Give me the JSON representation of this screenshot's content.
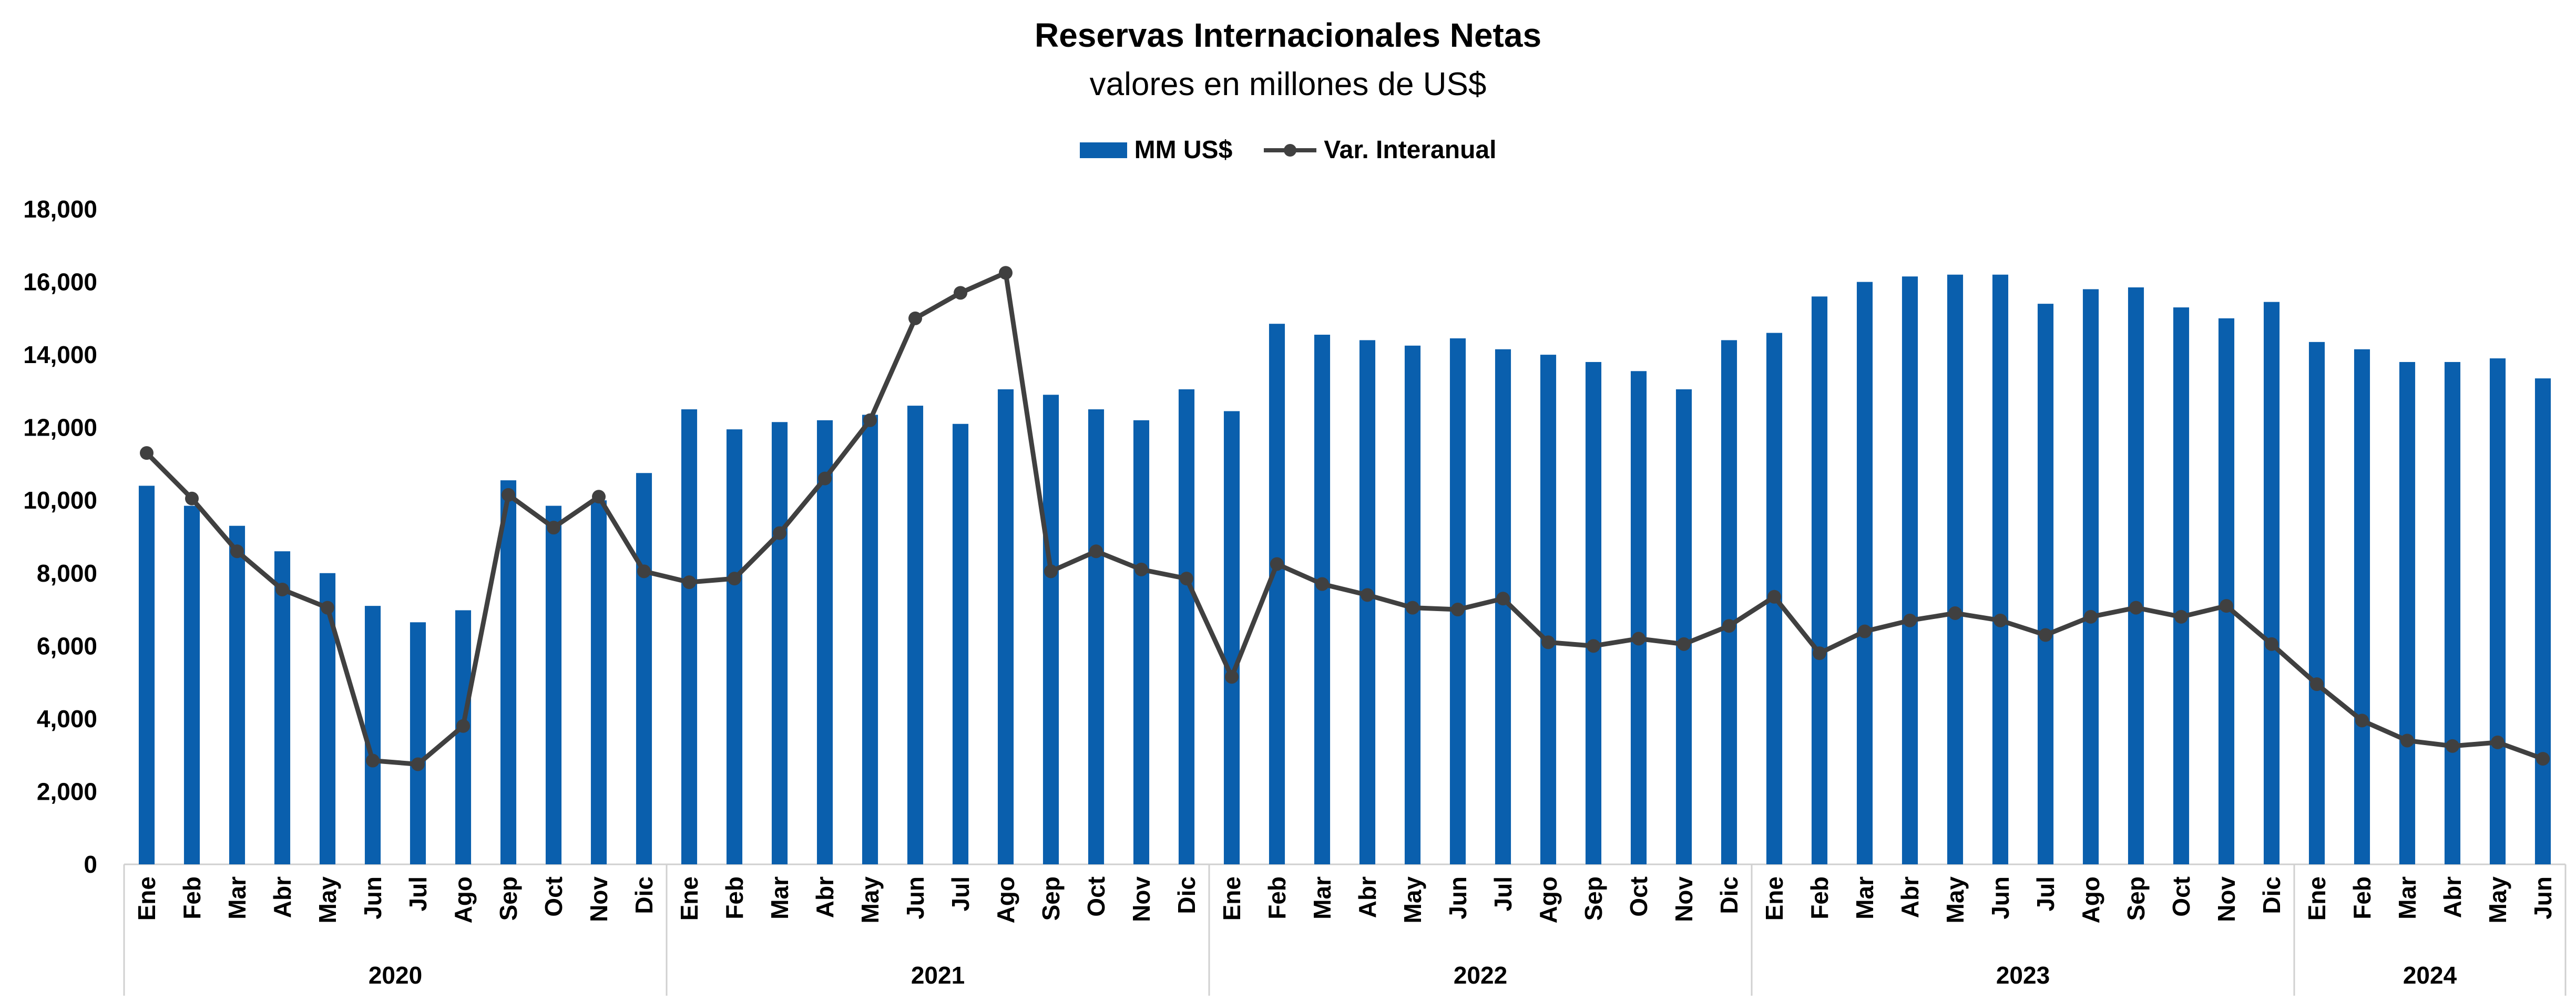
{
  "chart_data": {
    "type": "bar",
    "title": "Reservas Internacionales Netas",
    "subtitle": "valores en millones de US$",
    "ylim": [
      0,
      18000
    ],
    "yticks": [
      "0",
      "2,000",
      "4,000",
      "6,000",
      "8,000",
      "10,000",
      "12,000",
      "14,000",
      "16,000",
      "18,000"
    ],
    "legend_position": "top-center",
    "grid": false,
    "categories": [
      "Ene",
      "Feb",
      "Mar",
      "Abr",
      "May",
      "Jun",
      "Jul",
      "Ago",
      "Sep",
      "Oct",
      "Nov",
      "Dic",
      "Ene",
      "Feb",
      "Mar",
      "Abr",
      "May",
      "Jun",
      "Jul",
      "Ago",
      "Sep",
      "Oct",
      "Nov",
      "Dic",
      "Ene",
      "Feb",
      "Mar",
      "Abr",
      "May",
      "Jun",
      "Jul",
      "Ago",
      "Sep",
      "Oct",
      "Nov",
      "Dic",
      "Ene",
      "Feb",
      "Mar",
      "Abr",
      "May",
      "Jun",
      "Jul",
      "Ago",
      "Sep",
      "Oct",
      "Nov",
      "Dic",
      "Ene",
      "Feb",
      "Mar",
      "Abr",
      "May",
      "Jun"
    ],
    "year_groups": [
      {
        "label": "2020",
        "count": 12
      },
      {
        "label": "2021",
        "count": 12
      },
      {
        "label": "2022",
        "count": 12
      },
      {
        "label": "2023",
        "count": 12
      },
      {
        "label": "2024",
        "count": 6
      }
    ],
    "series": [
      {
        "name": "MM US$",
        "type": "bar",
        "color": "#0a5fad",
        "values": [
          10400,
          9850,
          9300,
          8600,
          8000,
          7100,
          6650,
          6980,
          10550,
          9850,
          10000,
          10750,
          12500,
          11950,
          12150,
          12200,
          12350,
          12600,
          12100,
          13050,
          12900,
          12500,
          12200,
          13050,
          12450,
          14850,
          14550,
          14400,
          14250,
          14450,
          14150,
          14000,
          13800,
          13550,
          13050,
          14400,
          14600,
          15600,
          16000,
          16150,
          16200,
          16200,
          15400,
          15800,
          15850,
          15300,
          15000,
          15450,
          14350,
          14150,
          13800,
          13800,
          13900,
          13350
        ]
      },
      {
        "name": "Var. Interanual",
        "type": "line",
        "color": "#404040",
        "values": [
          11300,
          10050,
          8600,
          7550,
          7050,
          2850,
          2750,
          3800,
          10150,
          9250,
          10100,
          8050,
          7750,
          7850,
          9100,
          10600,
          12200,
          15000,
          15700,
          16250,
          8050,
          8600,
          8100,
          7850,
          5150,
          8250,
          7700,
          7400,
          7050,
          7000,
          7300,
          6100,
          6000,
          6200,
          6050,
          6550,
          7350,
          5800,
          6400,
          6700,
          6900,
          6700,
          6300,
          6800,
          7050,
          6800,
          7100,
          6050,
          4950,
          3950,
          3400,
          3250,
          3350,
          2900
        ]
      }
    ]
  }
}
